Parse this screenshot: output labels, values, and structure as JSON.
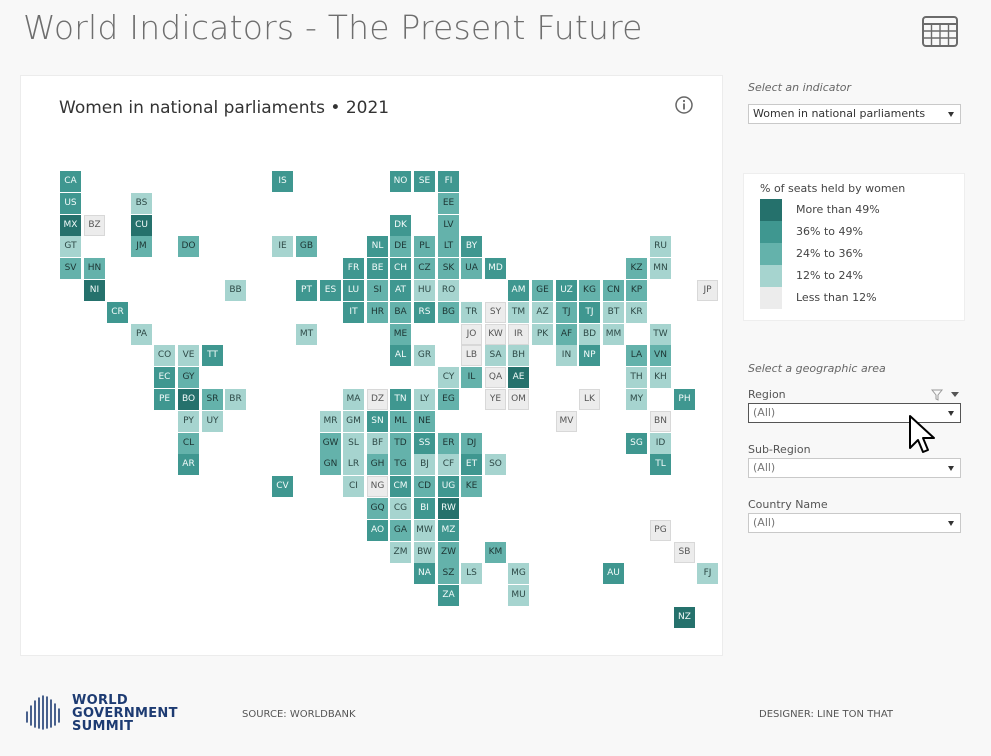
{
  "header": {
    "title": "World Indicators - The  Present Future"
  },
  "map": {
    "title": "Women in national parliaments • 2021",
    "tiles": [
      {
        "code": "CA",
        "c": 3,
        "col": 0,
        "row": 0
      },
      {
        "code": "US",
        "c": 3,
        "col": 0,
        "row": 1
      },
      {
        "code": "MX",
        "c": 4,
        "col": 0,
        "row": 2
      },
      {
        "code": "BZ",
        "c": 0,
        "col": 1,
        "row": 2
      },
      {
        "code": "GT",
        "c": 1,
        "col": 0,
        "row": 3
      },
      {
        "code": "SV",
        "c": 2,
        "col": 0,
        "row": 4
      },
      {
        "code": "HN",
        "c": 2,
        "col": 1,
        "row": 4
      },
      {
        "code": "NI",
        "c": 4,
        "col": 1,
        "row": 5
      },
      {
        "code": "CR",
        "c": 3,
        "col": 2,
        "row": 6
      },
      {
        "code": "PA",
        "c": 1,
        "col": 3,
        "row": 7
      },
      {
        "code": "BS",
        "c": 1,
        "col": 3,
        "row": 1
      },
      {
        "code": "CU",
        "c": 4,
        "col": 3,
        "row": 2
      },
      {
        "code": "JM",
        "c": 2,
        "col": 3,
        "row": 3
      },
      {
        "code": "DO",
        "c": 2,
        "col": 5,
        "row": 3
      },
      {
        "code": "BB",
        "c": 1,
        "col": 7,
        "row": 5
      },
      {
        "code": "CO",
        "c": 1,
        "col": 4,
        "row": 8
      },
      {
        "code": "VE",
        "c": 1,
        "col": 5,
        "row": 8
      },
      {
        "code": "TT",
        "c": 3,
        "col": 6,
        "row": 8
      },
      {
        "code": "EC",
        "c": 3,
        "col": 4,
        "row": 9
      },
      {
        "code": "GY",
        "c": 2,
        "col": 5,
        "row": 9
      },
      {
        "code": "PE",
        "c": 3,
        "col": 4,
        "row": 10
      },
      {
        "code": "BO",
        "c": 4,
        "col": 5,
        "row": 10
      },
      {
        "code": "SR",
        "c": 2,
        "col": 6,
        "row": 10
      },
      {
        "code": "BR",
        "c": 1,
        "col": 7,
        "row": 10
      },
      {
        "code": "PY",
        "c": 1,
        "col": 5,
        "row": 11
      },
      {
        "code": "UY",
        "c": 1,
        "col": 6,
        "row": 11
      },
      {
        "code": "CL",
        "c": 2,
        "col": 5,
        "row": 12
      },
      {
        "code": "AR",
        "c": 3,
        "col": 5,
        "row": 13
      },
      {
        "code": "IS",
        "c": 3,
        "col": 9,
        "row": 0
      },
      {
        "code": "NO",
        "c": 3,
        "col": 14,
        "row": 0
      },
      {
        "code": "SE",
        "c": 3,
        "col": 15,
        "row": 0
      },
      {
        "code": "FI",
        "c": 3,
        "col": 16,
        "row": 0
      },
      {
        "code": "EE",
        "c": 2,
        "col": 16,
        "row": 1
      },
      {
        "code": "DK",
        "c": 3,
        "col": 14,
        "row": 2
      },
      {
        "code": "LV",
        "c": 2,
        "col": 16,
        "row": 2
      },
      {
        "code": "IE",
        "c": 1,
        "col": 9,
        "row": 3
      },
      {
        "code": "GB",
        "c": 2,
        "col": 10,
        "row": 3
      },
      {
        "code": "NL",
        "c": 3,
        "col": 13,
        "row": 3
      },
      {
        "code": "DE",
        "c": 2,
        "col": 14,
        "row": 3
      },
      {
        "code": "PL",
        "c": 2,
        "col": 15,
        "row": 3
      },
      {
        "code": "LT",
        "c": 2,
        "col": 16,
        "row": 3
      },
      {
        "code": "BY",
        "c": 3,
        "col": 17,
        "row": 3
      },
      {
        "code": "RU",
        "c": 1,
        "col": 25,
        "row": 3
      },
      {
        "code": "FR",
        "c": 3,
        "col": 12,
        "row": 4
      },
      {
        "code": "BE",
        "c": 3,
        "col": 13,
        "row": 4
      },
      {
        "code": "CH",
        "c": 3,
        "col": 14,
        "row": 4
      },
      {
        "code": "CZ",
        "c": 2,
        "col": 15,
        "row": 4
      },
      {
        "code": "SK",
        "c": 2,
        "col": 16,
        "row": 4
      },
      {
        "code": "UA",
        "c": 2,
        "col": 17,
        "row": 4
      },
      {
        "code": "MD",
        "c": 3,
        "col": 18,
        "row": 4
      },
      {
        "code": "KZ",
        "c": 2,
        "col": 24,
        "row": 4
      },
      {
        "code": "MN",
        "c": 1,
        "col": 25,
        "row": 4
      },
      {
        "code": "PT",
        "c": 3,
        "col": 10,
        "row": 5
      },
      {
        "code": "ES",
        "c": 3,
        "col": 11,
        "row": 5
      },
      {
        "code": "LU",
        "c": 3,
        "col": 12,
        "row": 5
      },
      {
        "code": "SI",
        "c": 2,
        "col": 13,
        "row": 5
      },
      {
        "code": "AT",
        "c": 3,
        "col": 14,
        "row": 5
      },
      {
        "code": "HU",
        "c": 1,
        "col": 15,
        "row": 5
      },
      {
        "code": "RO",
        "c": 1,
        "col": 16,
        "row": 5
      },
      {
        "code": "AM",
        "c": 3,
        "col": 19,
        "row": 5
      },
      {
        "code": "GE",
        "c": 2,
        "col": 20,
        "row": 5
      },
      {
        "code": "UZ",
        "c": 3,
        "col": 21,
        "row": 5
      },
      {
        "code": "KG",
        "c": 2,
        "col": 22,
        "row": 5
      },
      {
        "code": "CN",
        "c": 2,
        "col": 23,
        "row": 5
      },
      {
        "code": "KP",
        "c": 2,
        "col": 24,
        "row": 5
      },
      {
        "code": "JP",
        "c": 0,
        "col": 27,
        "row": 5
      },
      {
        "code": "IT",
        "c": 3,
        "col": 12,
        "row": 6
      },
      {
        "code": "HR",
        "c": 2,
        "col": 13,
        "row": 6
      },
      {
        "code": "BA",
        "c": 2,
        "col": 14,
        "row": 6
      },
      {
        "code": "RS",
        "c": 3,
        "col": 15,
        "row": 6
      },
      {
        "code": "BG",
        "c": 2,
        "col": 16,
        "row": 6
      },
      {
        "code": "TR",
        "c": 1,
        "col": 17,
        "row": 6
      },
      {
        "code": "SY",
        "c": 0,
        "col": 18,
        "row": 6
      },
      {
        "code": "TM",
        "c": 1,
        "col": 19,
        "row": 6
      },
      {
        "code": "AZ",
        "c": 1,
        "col": 20,
        "row": 6
      },
      {
        "code": "TJ",
        "c": 2,
        "col": 21,
        "row": 6
      },
      {
        "code": "TJ",
        "c": 3,
        "col": 22,
        "row": 6
      },
      {
        "code": "BT",
        "c": 1,
        "col": 23,
        "row": 6
      },
      {
        "code": "KR",
        "c": 1,
        "col": 24,
        "row": 6
      },
      {
        "code": "MT",
        "c": 1,
        "col": 10,
        "row": 7
      },
      {
        "code": "ME",
        "c": 2,
        "col": 14,
        "row": 7
      },
      {
        "code": "JO",
        "c": 0,
        "col": 17,
        "row": 7
      },
      {
        "code": "KW",
        "c": 0,
        "col": 18,
        "row": 7
      },
      {
        "code": "IR",
        "c": 0,
        "col": 19,
        "row": 7
      },
      {
        "code": "PK",
        "c": 1,
        "col": 20,
        "row": 7
      },
      {
        "code": "AF",
        "c": 2,
        "col": 21,
        "row": 7
      },
      {
        "code": "BD",
        "c": 1,
        "col": 22,
        "row": 7
      },
      {
        "code": "MM",
        "c": 1,
        "col": 23,
        "row": 7
      },
      {
        "code": "TW",
        "c": 1,
        "col": 25,
        "row": 7
      },
      {
        "code": "AL",
        "c": 3,
        "col": 14,
        "row": 8
      },
      {
        "code": "GR",
        "c": 1,
        "col": 15,
        "row": 8
      },
      {
        "code": "LB",
        "c": 0,
        "col": 17,
        "row": 8
      },
      {
        "code": "SA",
        "c": 1,
        "col": 18,
        "row": 8
      },
      {
        "code": "BH",
        "c": 1,
        "col": 19,
        "row": 8
      },
      {
        "code": "IN",
        "c": 1,
        "col": 21,
        "row": 8
      },
      {
        "code": "NP",
        "c": 3,
        "col": 22,
        "row": 8
      },
      {
        "code": "LA",
        "c": 2,
        "col": 24,
        "row": 8
      },
      {
        "code": "VN",
        "c": 2,
        "col": 25,
        "row": 8
      },
      {
        "code": "CY",
        "c": 1,
        "col": 16,
        "row": 9
      },
      {
        "code": "IL",
        "c": 2,
        "col": 17,
        "row": 9
      },
      {
        "code": "QA",
        "c": 0,
        "col": 18,
        "row": 9
      },
      {
        "code": "AE",
        "c": 4,
        "col": 19,
        "row": 9
      },
      {
        "code": "TH",
        "c": 1,
        "col": 24,
        "row": 9
      },
      {
        "code": "KH",
        "c": 1,
        "col": 25,
        "row": 9
      },
      {
        "code": "MA",
        "c": 1,
        "col": 12,
        "row": 10
      },
      {
        "code": "DZ",
        "c": 0,
        "col": 13,
        "row": 10
      },
      {
        "code": "TN",
        "c": 3,
        "col": 14,
        "row": 10
      },
      {
        "code": "LY",
        "c": 1,
        "col": 15,
        "row": 10
      },
      {
        "code": "EG",
        "c": 2,
        "col": 16,
        "row": 10
      },
      {
        "code": "YE",
        "c": 0,
        "col": 18,
        "row": 10
      },
      {
        "code": "OM",
        "c": 0,
        "col": 19,
        "row": 10
      },
      {
        "code": "LK",
        "c": 0,
        "col": 22,
        "row": 10
      },
      {
        "code": "MY",
        "c": 1,
        "col": 24,
        "row": 10
      },
      {
        "code": "PH",
        "c": 3,
        "col": 26,
        "row": 10
      },
      {
        "code": "MR",
        "c": 1,
        "col": 11,
        "row": 11
      },
      {
        "code": "GM",
        "c": 1,
        "col": 12,
        "row": 11
      },
      {
        "code": "SN",
        "c": 3,
        "col": 13,
        "row": 11
      },
      {
        "code": "ML",
        "c": 2,
        "col": 14,
        "row": 11
      },
      {
        "code": "NE",
        "c": 2,
        "col": 15,
        "row": 11
      },
      {
        "code": "MV",
        "c": 0,
        "col": 21,
        "row": 11
      },
      {
        "code": "BN",
        "c": 0,
        "col": 25,
        "row": 11
      },
      {
        "code": "GW",
        "c": 2,
        "col": 11,
        "row": 12
      },
      {
        "code": "SL",
        "c": 1,
        "col": 12,
        "row": 12
      },
      {
        "code": "BF",
        "c": 1,
        "col": 13,
        "row": 12
      },
      {
        "code": "TD",
        "c": 2,
        "col": 14,
        "row": 12
      },
      {
        "code": "SS",
        "c": 3,
        "col": 15,
        "row": 12
      },
      {
        "code": "ER",
        "c": 2,
        "col": 16,
        "row": 12
      },
      {
        "code": "DJ",
        "c": 2,
        "col": 17,
        "row": 12
      },
      {
        "code": "SG",
        "c": 3,
        "col": 24,
        "row": 12
      },
      {
        "code": "ID",
        "c": 1,
        "col": 25,
        "row": 12
      },
      {
        "code": "GN",
        "c": 2,
        "col": 11,
        "row": 13
      },
      {
        "code": "LR",
        "c": 1,
        "col": 12,
        "row": 13
      },
      {
        "code": "GH",
        "c": 2,
        "col": 13,
        "row": 13
      },
      {
        "code": "TG",
        "c": 2,
        "col": 14,
        "row": 13
      },
      {
        "code": "BJ",
        "c": 1,
        "col": 15,
        "row": 13
      },
      {
        "code": "CF",
        "c": 1,
        "col": 16,
        "row": 13
      },
      {
        "code": "ET",
        "c": 3,
        "col": 17,
        "row": 13
      },
      {
        "code": "SO",
        "c": 1,
        "col": 18,
        "row": 13
      },
      {
        "code": "TL",
        "c": 3,
        "col": 25,
        "row": 13
      },
      {
        "code": "CV",
        "c": 3,
        "col": 9,
        "row": 14
      },
      {
        "code": "CI",
        "c": 1,
        "col": 12,
        "row": 14
      },
      {
        "code": "NG",
        "c": 0,
        "col": 13,
        "row": 14
      },
      {
        "code": "CM",
        "c": 3,
        "col": 14,
        "row": 14
      },
      {
        "code": "CD",
        "c": 2,
        "col": 15,
        "row": 14
      },
      {
        "code": "UG",
        "c": 3,
        "col": 16,
        "row": 14
      },
      {
        "code": "KE",
        "c": 2,
        "col": 17,
        "row": 14
      },
      {
        "code": "GQ",
        "c": 2,
        "col": 13,
        "row": 15
      },
      {
        "code": "CG",
        "c": 1,
        "col": 14,
        "row": 15
      },
      {
        "code": "BI",
        "c": 3,
        "col": 15,
        "row": 15
      },
      {
        "code": "RW",
        "c": 4,
        "col": 16,
        "row": 15
      },
      {
        "code": "AO",
        "c": 3,
        "col": 13,
        "row": 16
      },
      {
        "code": "GA",
        "c": 2,
        "col": 14,
        "row": 16
      },
      {
        "code": "MW",
        "c": 1,
        "col": 15,
        "row": 16
      },
      {
        "code": "MZ",
        "c": 3,
        "col": 16,
        "row": 16
      },
      {
        "code": "PG",
        "c": 0,
        "col": 25,
        "row": 16
      },
      {
        "code": "ZM",
        "c": 1,
        "col": 14,
        "row": 17
      },
      {
        "code": "BW",
        "c": 1,
        "col": 15,
        "row": 17
      },
      {
        "code": "ZW",
        "c": 2,
        "col": 16,
        "row": 17
      },
      {
        "code": "KM",
        "c": 2,
        "col": 18,
        "row": 17
      },
      {
        "code": "SB",
        "c": 0,
        "col": 26,
        "row": 17
      },
      {
        "code": "NA",
        "c": 3,
        "col": 15,
        "row": 18
      },
      {
        "code": "SZ",
        "c": 2,
        "col": 16,
        "row": 18
      },
      {
        "code": "LS",
        "c": 1,
        "col": 17,
        "row": 18
      },
      {
        "code": "MG",
        "c": 1,
        "col": 19,
        "row": 18
      },
      {
        "code": "AU",
        "c": 3,
        "col": 23,
        "row": 18
      },
      {
        "code": "FJ",
        "c": 1,
        "col": 27,
        "row": 18
      },
      {
        "code": "ZA",
        "c": 3,
        "col": 16,
        "row": 19
      },
      {
        "code": "MU",
        "c": 1,
        "col": 19,
        "row": 19
      },
      {
        "code": "NZ",
        "c": 4,
        "col": 26,
        "row": 20
      }
    ]
  },
  "indicator": {
    "label": "Select an indicator",
    "value": "Women in national parliaments"
  },
  "legend": {
    "title": "% of seats held by women",
    "items": [
      {
        "label": "More than 49%",
        "color": "#25716c"
      },
      {
        "label": "36% to 49%",
        "color": "#3f9790"
      },
      {
        "label": "24% to 36%",
        "color": "#64b2ab"
      },
      {
        "label": "12% to 24%",
        "color": "#a6d4cf"
      },
      {
        "label": "Less than 12%",
        "color": "#ececec"
      }
    ]
  },
  "geo": {
    "label": "Select a geographic area",
    "region_label": "Region",
    "region_value": "(All)",
    "subregion_label": "Sub-Region",
    "subregion_value": "(All)",
    "country_label": "Country Name",
    "country_value": "(All)"
  },
  "footer": {
    "brand_line1": "WORLD",
    "brand_line2": "GOVERNMENT",
    "brand_line3": "SUMMIT",
    "source": "SOURCE:  WORLDBANK",
    "designer": "DESIGNER: LINE TON THAT"
  },
  "icons": {
    "table": "table-grid-icon",
    "info": "info-icon",
    "filter": "filter-icon",
    "cursor": "mouse-pointer-icon"
  }
}
